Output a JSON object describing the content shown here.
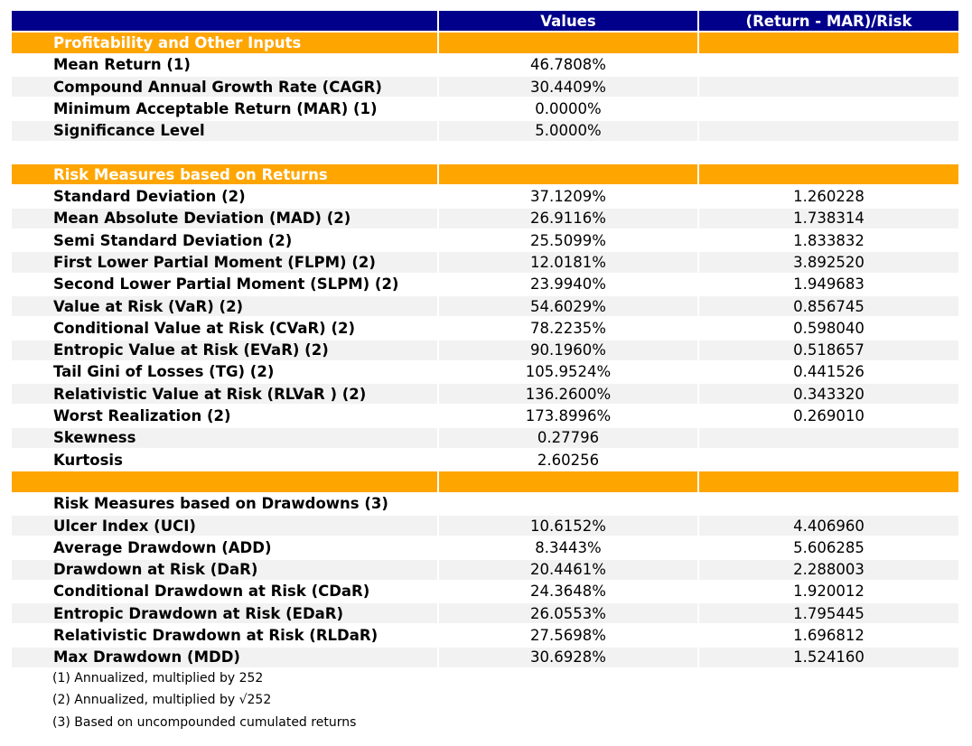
{
  "table": {
    "header": {
      "values": "Values",
      "ratio": "(Return - MAR)/Risk"
    },
    "rows": [
      {
        "style": "section",
        "label": "Profitability and Other Inputs"
      },
      {
        "style": "row",
        "label": "Mean Return (1)",
        "value": "46.7808%"
      },
      {
        "style": "row",
        "shade": true,
        "label": "Compound Annual Growth Rate (CAGR)",
        "value": "30.4409%"
      },
      {
        "style": "row",
        "label": "Minimum Acceptable Return (MAR) (1)",
        "value": "0.0000%"
      },
      {
        "style": "row",
        "shade": true,
        "label": "Significance Level",
        "value": "5.0000%"
      },
      {
        "style": "spacer"
      },
      {
        "style": "section",
        "label": "Risk Measures based on Returns"
      },
      {
        "style": "row",
        "label": "Standard Deviation (2)",
        "value": "37.1209%",
        "ratio": "1.260228"
      },
      {
        "style": "row",
        "shade": true,
        "label": "Mean Absolute Deviation (MAD) (2)",
        "value": "26.9116%",
        "ratio": "1.738314"
      },
      {
        "style": "row",
        "label": "Semi Standard Deviation (2)",
        "value": "25.5099%",
        "ratio": "1.833832"
      },
      {
        "style": "row",
        "shade": true,
        "label": "First Lower Partial Moment (FLPM) (2)",
        "value": "12.0181%",
        "ratio": "3.892520"
      },
      {
        "style": "row",
        "label": "Second Lower Partial Moment (SLPM) (2)",
        "value": "23.9940%",
        "ratio": "1.949683"
      },
      {
        "style": "row",
        "shade": true,
        "label": "Value at Risk (VaR) (2)",
        "value": "54.6029%",
        "ratio": "0.856745"
      },
      {
        "style": "row",
        "label": "Conditional Value at Risk (CVaR) (2)",
        "value": "78.2235%",
        "ratio": "0.598040"
      },
      {
        "style": "row",
        "shade": true,
        "label": "Entropic Value at Risk (EVaR) (2)",
        "value": "90.1960%",
        "ratio": "0.518657"
      },
      {
        "style": "row",
        "label": "Tail Gini of Losses (TG) (2)",
        "value": "105.9524%",
        "ratio": "0.441526"
      },
      {
        "style": "row",
        "shade": true,
        "label": "Relativistic Value at Risk (RLVaR ) (2)",
        "value": "136.2600%",
        "ratio": "0.343320"
      },
      {
        "style": "row",
        "label": "Worst Realization (2)",
        "value": "173.8996%",
        "ratio": "0.269010"
      },
      {
        "style": "row",
        "shade": true,
        "label": "Skewness",
        "value": "0.27796"
      },
      {
        "style": "row",
        "label": "Kurtosis",
        "value": "2.60256"
      },
      {
        "style": "section"
      },
      {
        "style": "row",
        "label": "Risk Measures based on Drawdowns (3)"
      },
      {
        "style": "row",
        "shade": true,
        "label": "Ulcer Index (UCI)",
        "value": "10.6152%",
        "ratio": "4.406960"
      },
      {
        "style": "row",
        "label": "Average Drawdown (ADD)",
        "value": "8.3443%",
        "ratio": "5.606285"
      },
      {
        "style": "row",
        "shade": true,
        "label": "Drawdown at Risk (DaR)",
        "value": "20.4461%",
        "ratio": "2.288003"
      },
      {
        "style": "row",
        "label": "Conditional Drawdown at Risk (CDaR)",
        "value": "24.3648%",
        "ratio": "1.920012"
      },
      {
        "style": "row",
        "shade": true,
        "label": "Entropic Drawdown at Risk (EDaR)",
        "value": "26.0553%",
        "ratio": "1.795445"
      },
      {
        "style": "row",
        "label": "Relativistic Drawdown at Risk (RLDaR)",
        "value": "27.5698%",
        "ratio": "1.696812"
      },
      {
        "style": "row",
        "shade": true,
        "label": "Max Drawdown (MDD)",
        "value": "30.6928%",
        "ratio": "1.524160"
      }
    ],
    "notes": [
      "(1) Annualized, multiplied by 252",
      "(2) Annualized, multiplied by √252",
      "(3) Based on uncompounded cumulated returns"
    ]
  }
}
